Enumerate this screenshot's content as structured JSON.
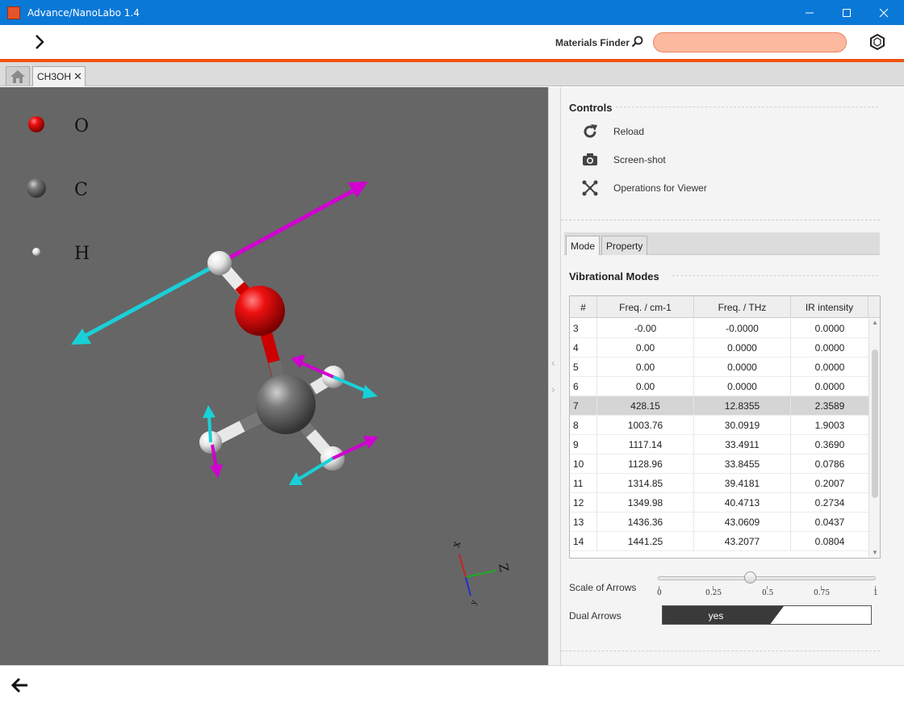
{
  "window": {
    "title": "Advance/NanoLabo 1.4",
    "app_icon_text": "Nano Labo",
    "minimize_icon": "minimize-icon",
    "maximize_icon": "maximize-icon",
    "close_icon": "close-icon"
  },
  "toolbar": {
    "finder_label": "Materials Finder",
    "finder_value": "",
    "finder_placeholder": "",
    "accent_color": "#f05312"
  },
  "tabs": {
    "home_icon": "home-icon",
    "document_tab": "CH3OH",
    "document_close": "✕"
  },
  "viewer": {
    "background": "#666666",
    "legend": [
      {
        "element": "O",
        "color": "#dd0000"
      },
      {
        "element": "C",
        "color": "#555555"
      },
      {
        "element": "H",
        "color": "#f0f0f0"
      }
    ],
    "axes": {
      "x_label": "x",
      "y_label": "y",
      "z_label": "Z"
    }
  },
  "controls": {
    "title": "Controls",
    "items": [
      {
        "label": "Reload",
        "icon": "reload-icon"
      },
      {
        "label": "Screen-shot",
        "icon": "camera-icon"
      },
      {
        "label": "Operations for Viewer",
        "icon": "operations-icon"
      }
    ]
  },
  "mode_tabs": {
    "mode": "Mode",
    "property": "Property"
  },
  "vibrational": {
    "title": "Vibrational Modes",
    "columns": [
      "#",
      "Freq. / cm-1",
      "Freq. / THz",
      "IR intensity"
    ],
    "rows": [
      [
        "3",
        "-0.00",
        "-0.0000",
        "0.0000"
      ],
      [
        "4",
        "0.00",
        "0.0000",
        "0.0000"
      ],
      [
        "5",
        "0.00",
        "0.0000",
        "0.0000"
      ],
      [
        "6",
        "0.00",
        "0.0000",
        "0.0000"
      ],
      [
        "7",
        "428.15",
        "12.8355",
        "2.3589"
      ],
      [
        "8",
        "1003.76",
        "30.0919",
        "1.9003"
      ],
      [
        "9",
        "1117.14",
        "33.4911",
        "0.3690"
      ],
      [
        "10",
        "1128.96",
        "33.8455",
        "0.0786"
      ],
      [
        "11",
        "1314.85",
        "39.4181",
        "0.2007"
      ],
      [
        "12",
        "1349.98",
        "40.4713",
        "0.2734"
      ],
      [
        "13",
        "1436.36",
        "43.0609",
        "0.0437"
      ],
      [
        "14",
        "1441.25",
        "43.2077",
        "0.0804"
      ]
    ],
    "selected_row": 4
  },
  "scale": {
    "label": "Scale of Arrows",
    "value": 0.42,
    "ticks": [
      "0",
      "0.25",
      "0.5",
      "0.75",
      "1"
    ]
  },
  "dual_arrows": {
    "label": "Dual Arrows",
    "value": "yes"
  }
}
